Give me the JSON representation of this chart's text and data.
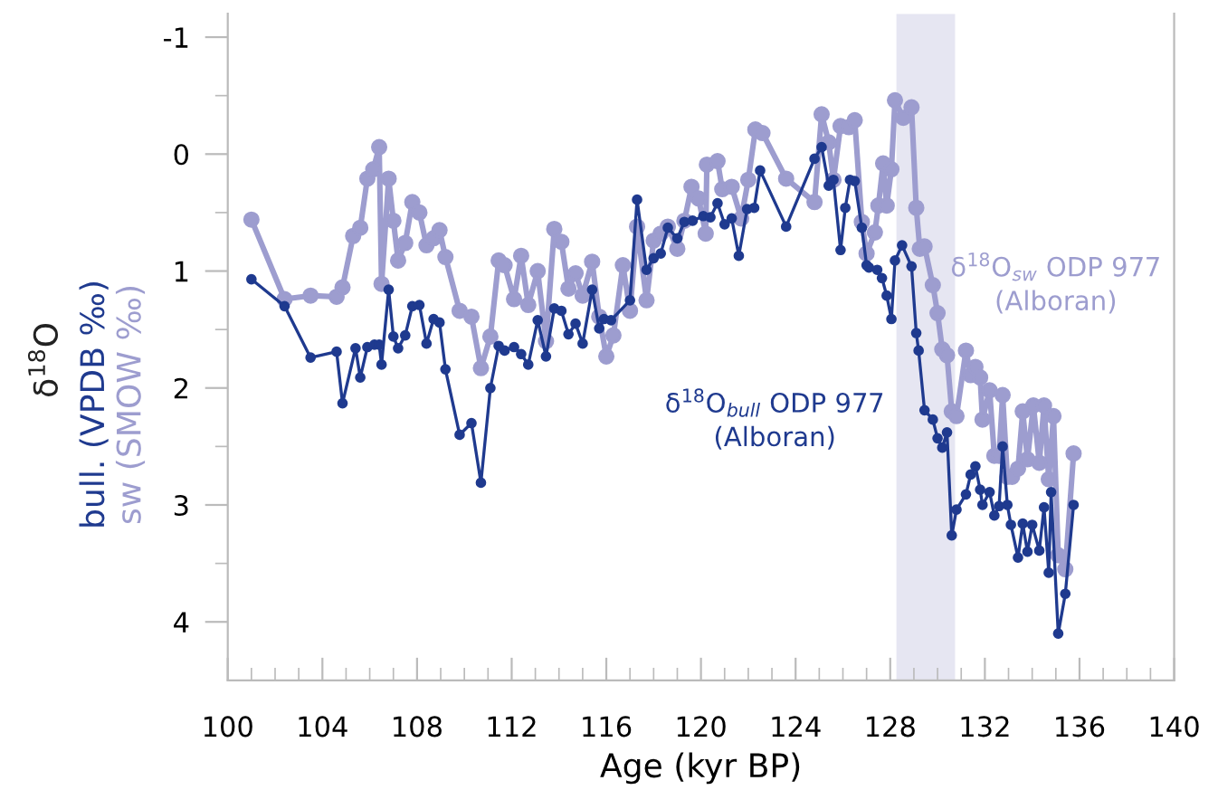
{
  "chart_data": {
    "type": "line",
    "xlabel": "Age (kyr BP)",
    "ylabel": "δ$^{18}$O\nbull. (VPDB ‰)\nsw (SMOW ‰)",
    "xlim": [
      100,
      140
    ],
    "ylim": [
      4.5,
      -1.2
    ],
    "xticks": [
      100,
      {
        "value": 101,
        "label": null
      },
      {
        "value": 102,
        "label": null
      },
      {
        "value": 103,
        "label": null
      },
      104,
      {
        "value": 105,
        "label": null
      },
      {
        "value": 106,
        "label": null
      },
      {
        "value": 107,
        "label": null
      },
      108,
      {
        "value": 109,
        "label": null
      },
      {
        "value": 110,
        "label": null
      },
      {
        "value": 111,
        "label": null
      },
      112,
      {
        "value": 113,
        "label": null
      },
      {
        "value": 114,
        "label": null
      },
      {
        "value": 115,
        "label": null
      },
      116,
      {
        "value": 117,
        "label": null
      },
      {
        "value": 118,
        "label": null
      },
      {
        "value": 119,
        "label": null
      },
      120,
      {
        "value": 121,
        "label": null
      },
      {
        "value": 122,
        "label": null
      },
      {
        "value": 123,
        "label": null
      },
      124,
      {
        "value": 125,
        "label": null
      },
      {
        "value": 126,
        "label": null
      },
      {
        "value": 127,
        "label": null
      },
      128,
      {
        "value": 129,
        "label": null
      },
      {
        "value": 130,
        "label": null
      },
      {
        "value": 131,
        "label": null
      },
      132,
      {
        "value": 133,
        "label": null
      },
      {
        "value": 134,
        "label": null
      },
      {
        "value": 135,
        "label": null
      },
      136,
      {
        "value": 137,
        "label": null
      },
      {
        "value": 138,
        "label": null
      },
      {
        "value": 139,
        "label": null
      },
      140
    ],
    "yticks": [
      {
        "value": -1,
        "label": "-1"
      },
      {
        "value": -0.5,
        "label": null
      },
      0,
      {
        "value": 0.5,
        "label": null
      },
      1,
      {
        "value": 1.5,
        "label": null
      },
      2,
      {
        "value": 2.5,
        "label": null
      },
      3,
      {
        "value": 3.5,
        "label": null
      },
      4
    ],
    "marker": "circle",
    "grid": false,
    "legend": false,
    "bands": [
      {
        "axis": "x",
        "from": 128.26,
        "to": 130.74,
        "color": "#e6e6f2"
      }
    ],
    "series": [
      {
        "name": "δ$^{18}$O$_{bull}$ ODP 977\n(Alboran)",
        "color": "#1f3a8f",
        "x": [
          101.0,
          102.4,
          103.5,
          104.6,
          104.85,
          105.4,
          105.6,
          105.9,
          106.2,
          106.4,
          106.5,
          106.8,
          107.0,
          107.2,
          107.5,
          107.8,
          108.1,
          108.4,
          108.7,
          108.95,
          109.2,
          109.8,
          110.3,
          110.7,
          111.1,
          111.45,
          111.7,
          112.1,
          112.4,
          112.7,
          113.1,
          113.45,
          113.8,
          114.1,
          114.4,
          114.7,
          115.0,
          115.4,
          115.7,
          115.9,
          116.2,
          117.0,
          117.3,
          117.7,
          118.0,
          118.3,
          118.6,
          119.0,
          119.3,
          119.65,
          120.1,
          120.4,
          120.7,
          121.0,
          121.3,
          121.6,
          121.95,
          122.25,
          122.5,
          123.6,
          124.8,
          125.1,
          125.4,
          125.6,
          125.9,
          126.1,
          126.3,
          126.5,
          126.8,
          127.0,
          127.1,
          127.45,
          127.65,
          127.85,
          128.05,
          128.2,
          128.5,
          128.9,
          129.1,
          129.2,
          129.45,
          129.8,
          130.0,
          130.2,
          130.4,
          130.6,
          130.8,
          131.2,
          131.4,
          131.6,
          131.8,
          131.9,
          132.2,
          132.4,
          132.6,
          132.75,
          132.95,
          133.1,
          133.4,
          133.6,
          133.8,
          134.0,
          134.3,
          134.5,
          134.7,
          134.8,
          135.1,
          135.4,
          135.75
        ],
        "values": [
          1.07,
          1.3,
          1.74,
          1.69,
          2.13,
          1.66,
          1.91,
          1.65,
          1.63,
          1.63,
          1.8,
          1.16,
          1.56,
          1.66,
          1.55,
          1.3,
          1.29,
          1.62,
          1.41,
          1.44,
          1.84,
          2.4,
          2.3,
          2.81,
          2.0,
          1.64,
          1.68,
          1.65,
          1.71,
          1.8,
          1.42,
          1.73,
          1.32,
          1.34,
          1.54,
          1.45,
          1.62,
          1.16,
          1.49,
          1.41,
          1.42,
          1.25,
          0.39,
          0.99,
          0.89,
          0.85,
          0.63,
          0.72,
          0.58,
          0.57,
          0.53,
          0.54,
          0.42,
          0.6,
          0.55,
          0.87,
          0.47,
          0.46,
          0.14,
          0.62,
          0.04,
          -0.06,
          0.27,
          0.22,
          0.82,
          0.46,
          0.22,
          0.23,
          0.63,
          0.95,
          0.97,
          0.99,
          1.06,
          1.21,
          1.41,
          0.91,
          0.78,
          0.96,
          1.53,
          1.68,
          2.19,
          2.27,
          2.43,
          2.51,
          2.38,
          3.26,
          3.04,
          2.91,
          2.74,
          2.67,
          2.87,
          3.0,
          2.89,
          3.09,
          3.01,
          2.5,
          3.0,
          3.17,
          3.45,
          3.16,
          3.4,
          3.17,
          3.39,
          3.02,
          3.58,
          2.89,
          4.1,
          3.76,
          3.0
        ]
      },
      {
        "name": "δ$^{18}$O$_{sw}$ ODP 977\n(Alboran)",
        "color": "#9d9dcf",
        "x": [
          101.0,
          102.4,
          103.5,
          104.6,
          104.85,
          105.3,
          105.6,
          105.9,
          106.15,
          106.4,
          106.5,
          106.8,
          107.0,
          107.2,
          107.5,
          107.8,
          108.1,
          108.4,
          108.7,
          108.95,
          109.2,
          109.8,
          110.3,
          110.7,
          111.1,
          111.45,
          111.7,
          112.1,
          112.4,
          112.7,
          113.1,
          113.45,
          113.8,
          114.1,
          114.4,
          114.7,
          115.0,
          115.4,
          115.7,
          116.0,
          116.3,
          116.7,
          117.0,
          117.3,
          117.7,
          118.0,
          118.3,
          118.6,
          119.0,
          119.3,
          119.6,
          119.9,
          120.2,
          120.25,
          120.7,
          120.9,
          121.3,
          121.7,
          122.0,
          122.3,
          122.6,
          123.6,
          124.8,
          125.1,
          125.4,
          125.6,
          125.9,
          126.25,
          126.5,
          126.8,
          127.0,
          127.35,
          127.5,
          127.7,
          127.85,
          128.05,
          128.2,
          128.55,
          128.9,
          129.1,
          129.25,
          129.45,
          129.8,
          130.0,
          130.2,
          130.4,
          130.6,
          130.8,
          131.2,
          131.4,
          131.6,
          131.8,
          131.9,
          132.2,
          132.4,
          132.6,
          132.75,
          132.95,
          133.15,
          133.4,
          133.6,
          133.8,
          134.05,
          134.3,
          134.5,
          134.7,
          134.9,
          135.1,
          135.4,
          135.75
        ],
        "values": [
          0.56,
          1.24,
          1.21,
          1.22,
          1.14,
          0.7,
          0.63,
          0.21,
          0.13,
          -0.06,
          1.11,
          0.21,
          0.57,
          0.91,
          0.76,
          0.41,
          0.5,
          0.78,
          0.72,
          0.65,
          0.88,
          1.34,
          1.39,
          1.83,
          1.56,
          0.91,
          0.95,
          1.24,
          0.87,
          1.29,
          1.0,
          1.6,
          0.64,
          0.75,
          1.15,
          1.02,
          1.21,
          0.92,
          1.39,
          1.73,
          1.55,
          0.95,
          1.34,
          0.62,
          1.25,
          0.74,
          0.68,
          0.62,
          0.81,
          0.57,
          0.28,
          0.38,
          0.68,
          0.09,
          0.06,
          0.3,
          0.28,
          0.55,
          0.22,
          -0.21,
          -0.18,
          0.21,
          0.41,
          -0.34,
          -0.1,
          0.22,
          -0.24,
          -0.23,
          -0.29,
          0.58,
          0.85,
          0.67,
          0.44,
          0.08,
          0.44,
          0.13,
          -0.46,
          -0.31,
          -0.4,
          0.46,
          0.81,
          0.79,
          1.12,
          1.36,
          1.67,
          1.72,
          2.2,
          2.24,
          1.68,
          1.89,
          1.82,
          1.91,
          2.27,
          2.02,
          2.58,
          2.58,
          2.06,
          2.76,
          2.76,
          2.69,
          2.2,
          2.61,
          2.15,
          2.64,
          2.15,
          2.78,
          2.24,
          3.43,
          3.55,
          2.56
        ]
      }
    ]
  }
}
